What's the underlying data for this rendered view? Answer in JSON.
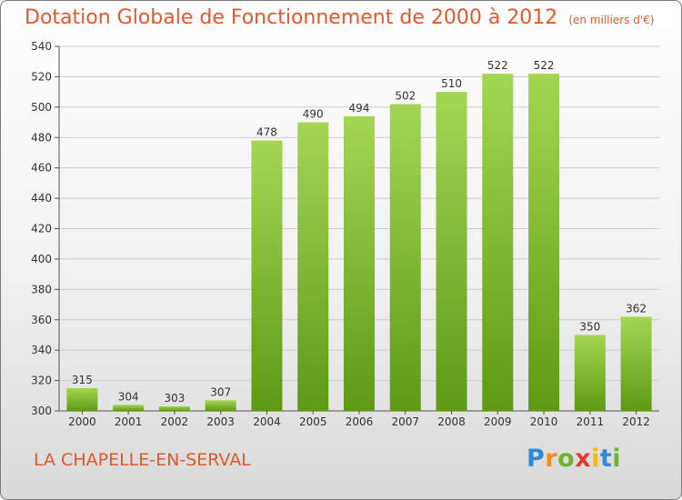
{
  "header": {
    "title": "Dotation Globale de Fonctionnement de 2000 à 2012",
    "unit": "(en milliers d'€)"
  },
  "footer": {
    "place": "LA CHAPELLE-EN-SERVAL"
  },
  "logo": {
    "letters": [
      "P",
      "r",
      "o",
      "x",
      "i",
      "t",
      "i"
    ],
    "colors": [
      "#2e8bd8",
      "#f28c1c",
      "#6cb52d",
      "#e53a2b",
      "#f2b81c",
      "#2e8bd8",
      "#6cb52d"
    ]
  },
  "colors": {
    "title": "#e0592e",
    "bar_light": "#a5d653",
    "bar_dark": "#5e9a14",
    "grid": "#cccccc"
  },
  "chart_data": {
    "type": "bar",
    "categories": [
      "2000",
      "2001",
      "2002",
      "2003",
      "2004",
      "2005",
      "2006",
      "2007",
      "2008",
      "2009",
      "2010",
      "2011",
      "2012"
    ],
    "values": [
      315,
      304,
      303,
      307,
      478,
      490,
      494,
      502,
      510,
      522,
      522,
      350,
      362
    ],
    "ylim": [
      300,
      540
    ],
    "yticks": [
      300,
      320,
      340,
      360,
      380,
      400,
      420,
      440,
      460,
      480,
      500,
      520,
      540
    ],
    "grid": true,
    "data_labels": true
  }
}
